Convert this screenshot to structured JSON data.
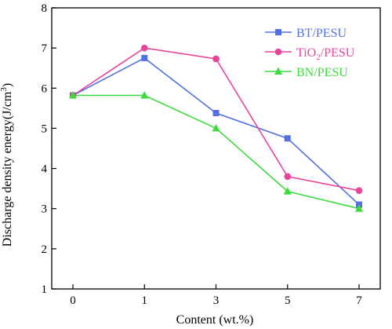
{
  "chart_data": {
    "type": "line",
    "xlabel": "Content (wt.%)",
    "ylabel_main": "Discharge density energy(J/cm",
    "ylabel_sup": "3",
    "ylabel_tail": ")",
    "categories": [
      "0",
      "1",
      "3",
      "5",
      "7"
    ],
    "ylim": [
      1,
      8
    ],
    "yticks": [
      1,
      2,
      3,
      4,
      5,
      6,
      7,
      8
    ],
    "grid": false,
    "legend_position": "top-right",
    "series": [
      {
        "name": "BT/PESU",
        "name_main": "BT/PESU",
        "name_sub": "",
        "name_tail": "",
        "color": "#5470e0",
        "marker": "square",
        "values": [
          5.82,
          6.75,
          5.38,
          4.75,
          3.1
        ]
      },
      {
        "name": "TiO2/PESU",
        "name_main": "TiO",
        "name_sub": "2",
        "name_tail": "/PESU",
        "color": "#e8449a",
        "marker": "circle",
        "values": [
          5.82,
          7.0,
          6.73,
          3.8,
          3.45
        ]
      },
      {
        "name": "BN/PESU",
        "name_main": "BN/PESU",
        "name_sub": "",
        "name_tail": "",
        "color": "#3ddb3d",
        "marker": "triangle",
        "values": [
          5.82,
          5.82,
          5.0,
          3.43,
          3.0
        ]
      }
    ]
  }
}
